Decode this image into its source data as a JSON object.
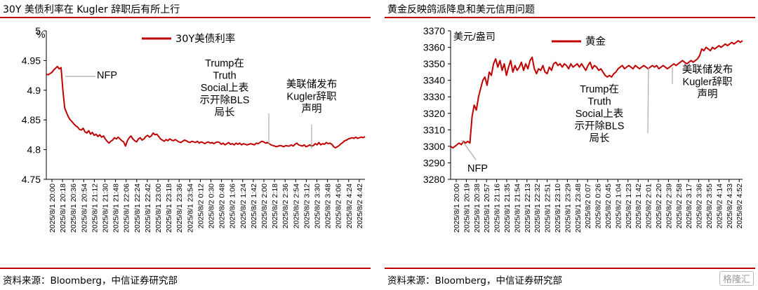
{
  "charts": [
    {
      "title": "30Y 美债利率在 Kugler 辞职后有所上行",
      "source": "资料来源：Bloomberg，中信证券研究部",
      "unit": "%",
      "legend": "30Y美债利率",
      "color": "#c00000",
      "chart_data": {
        "type": "line",
        "ylim": [
          4.75,
          5.0
        ],
        "yticks": [
          "4.75",
          "4.8",
          "4.85",
          "4.9",
          "4.95",
          "5"
        ],
        "xticks": [
          "2025/8/1 20:00",
          "2025/8/1 20:18",
          "2025/8/1 20:36",
          "2025/8/1 20:54",
          "2025/8/1 21:12",
          "2025/8/1 21:30",
          "2025/8/1 21:48",
          "2025/8/1 22:06",
          "2025/8/1 22:24",
          "2025/8/1 22:42",
          "2025/8/1 23:00",
          "2025/8/1 23:18",
          "2025/8/1 23:36",
          "2025/8/1 23:54",
          "2025/8/2 0:12",
          "2025/8/2 0:30",
          "2025/8/2 0:48",
          "2025/8/2 1:06",
          "2025/8/2 1:24",
          "2025/8/2 1:42",
          "2025/8/2 2:00",
          "2025/8/2 2:18",
          "2025/8/2 2:36",
          "2025/8/2 2:54",
          "2025/8/2 3:12",
          "2025/8/2 3:30",
          "2025/8/2 3:48",
          "2025/8/2 4:06",
          "2025/8/2 4:24",
          "2025/8/2 4:42"
        ],
        "series": [
          {
            "name": "30Y美债利率",
            "values": [
              4.927,
              4.926,
              4.928,
              4.93,
              4.934,
              4.937,
              4.94,
              4.936,
              4.938,
              4.9,
              4.87,
              4.862,
              4.855,
              4.85,
              4.847,
              4.843,
              4.84,
              4.838,
              4.834,
              4.833,
              4.836,
              4.83,
              4.828,
              4.832,
              4.826,
              4.829,
              4.824,
              4.826,
              4.822,
              4.825,
              4.821,
              4.823,
              4.818,
              4.814,
              4.811,
              4.814,
              4.816,
              4.82,
              4.818,
              4.821,
              4.818,
              4.815,
              4.813,
              4.806,
              4.815,
              4.82,
              4.823,
              4.818,
              4.815,
              4.813,
              4.818,
              4.82,
              4.816,
              4.818,
              4.822,
              4.824,
              4.821,
              4.823,
              4.828,
              4.825,
              4.826,
              4.822,
              4.818,
              4.816,
              4.814,
              4.817,
              4.815,
              4.818,
              4.816,
              4.815,
              4.817,
              4.815,
              4.813,
              4.812,
              4.814,
              4.816,
              4.815,
              4.813,
              4.812,
              4.814,
              4.813,
              4.812,
              4.814,
              4.811,
              4.813,
              4.812,
              4.81,
              4.812,
              4.813,
              4.811,
              4.812,
              4.81,
              4.812,
              4.813,
              4.812,
              4.809,
              4.811,
              4.808,
              4.81,
              4.812,
              4.809,
              4.81,
              4.808,
              4.811,
              4.809,
              4.811,
              4.808,
              4.81,
              4.809,
              4.808,
              4.809,
              4.81,
              4.809,
              4.808,
              4.811,
              4.81,
              4.812,
              4.814,
              4.813,
              4.811,
              4.812,
              4.81,
              4.808,
              4.807,
              4.806,
              4.805,
              4.806,
              4.807,
              4.806,
              4.805,
              4.807,
              4.806,
              4.806,
              4.808,
              4.806,
              4.809,
              4.811,
              4.808,
              4.807,
              4.806,
              4.808,
              4.805,
              4.806,
              4.808,
              4.806,
              4.807,
              4.81,
              4.808,
              4.812,
              4.808,
              4.81,
              4.809,
              4.812,
              4.81,
              4.811,
              4.809,
              4.805,
              4.803,
              4.805,
              4.807,
              4.81,
              4.812,
              4.815,
              4.816,
              4.818,
              4.819,
              4.82,
              4.819,
              4.821,
              4.819,
              4.82,
              4.821,
              4.82,
              4.822
            ]
          }
        ],
        "annotations": [
          {
            "lines": [
              "NFP"
            ]
          },
          {
            "lines": [
              "Trump在",
              "Truth",
              "Social上表",
              "示开除BLS",
              "局长"
            ]
          },
          {
            "lines": [
              "美联储发布",
              "Kugler辞职",
              "声明"
            ]
          }
        ]
      }
    },
    {
      "title": "黄金反映鸽派降息和美元信用问题",
      "source": "资料来源：Bloomberg，中信证券研究部",
      "unit": "美元/盎司",
      "legend": "黄金",
      "color": "#c00000",
      "chart_data": {
        "type": "line",
        "ylim": [
          3280,
          3370
        ],
        "yticks": [
          "3280",
          "3290",
          "3300",
          "3310",
          "3320",
          "3330",
          "3340",
          "3350",
          "3360",
          "3370"
        ],
        "xticks": [
          "2025/8/1 20:00",
          "2025/8/1 20:19",
          "2025/8/1 20:38",
          "2025/8/1 20:57",
          "2025/8/1 21:16",
          "2025/8/1 21:35",
          "2025/8/1 21:54",
          "2025/8/1 22:13",
          "2025/8/1 22:32",
          "2025/8/1 22:51",
          "2025/8/1 23:10",
          "2025/8/1 23:29",
          "2025/8/1 23:48",
          "2025/8/2 0:07",
          "2025/8/2 0:26",
          "2025/8/2 0:45",
          "2025/8/2 1:04",
          "2025/8/2 1:23",
          "2025/8/2 1:42",
          "2025/8/2 2:01",
          "2025/8/2 2:20",
          "2025/8/2 2:39",
          "2025/8/2 2:58",
          "2025/8/2 3:17",
          "2025/8/2 3:36",
          "2025/8/2 3:55",
          "2025/8/2 4:14",
          "2025/8/2 4:33",
          "2025/8/2 4:52"
        ],
        "series": [
          {
            "name": "黄金",
            "values": [
              3300,
              3299,
              3300,
              3301,
              3302,
              3301,
              3303,
              3302,
              3303,
              3302,
              3318,
              3325,
              3322,
              3330,
              3335,
              3340,
              3342,
              3337,
              3345,
              3343,
              3350,
              3353,
              3348,
              3352,
              3346,
              3350,
              3343,
              3348,
              3352,
              3345,
              3349,
              3346,
              3348,
              3351,
              3346,
              3350,
              3347,
              3352,
              3354,
              3347,
              3344,
              3347,
              3346,
              3349,
              3345,
              3344,
              3348,
              3346,
              3350,
              3351,
              3349,
              3350,
              3348,
              3350,
              3349,
              3347,
              3350,
              3348,
              3349,
              3350,
              3348,
              3350,
              3348,
              3346,
              3349,
              3351,
              3347,
              3349,
              3348,
              3346,
              3347,
              3345,
              3343,
              3342,
              3343,
              3342,
              3344,
              3345,
              3347,
              3348,
              3349,
              3347,
              3348,
              3349,
              3348,
              3347,
              3349,
              3348,
              3347,
              3348,
              3349,
              3348,
              3347,
              3348,
              3349,
              3348,
              3349,
              3347,
              3348,
              3349,
              3348,
              3347,
              3348,
              3349,
              3350,
              3349,
              3350,
              3351,
              3352,
              3351,
              3350,
              3351,
              3352,
              3351,
              3352,
              3353,
              3355,
              3359,
              3358,
              3360,
              3359,
              3358,
              3360,
              3359,
              3360,
              3361,
              3360,
              3361,
              3362,
              3361,
              3362,
              3363,
              3362,
              3363,
              3364,
              3363,
              3364
            ]
          }
        ],
        "annotations": [
          {
            "lines": [
              "NFP"
            ]
          },
          {
            "lines": [
              "Trump在",
              "Truth",
              "Social上表",
              "示开除BLS",
              "局长"
            ]
          },
          {
            "lines": [
              "美联储发布",
              "Kugler辞职",
              "声明"
            ]
          }
        ]
      }
    }
  ],
  "watermark": "格隆汇"
}
